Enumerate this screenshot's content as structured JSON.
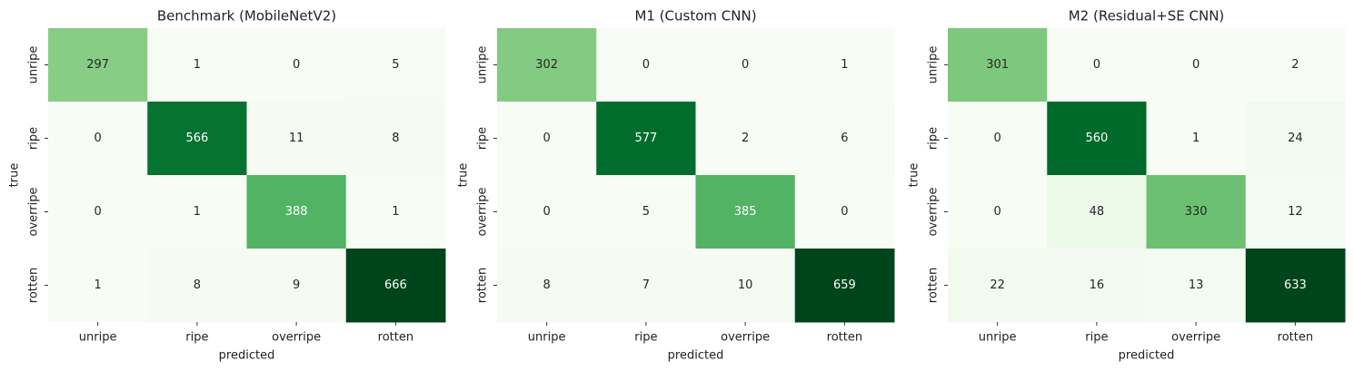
{
  "chart_data": [
    {
      "type": "heatmap",
      "title": "Benchmark (MobileNetV2)",
      "x_label": "predicted",
      "y_label": "true",
      "colormap": "Greens",
      "x_categories": [
        "unripe",
        "ripe",
        "overripe",
        "rotten"
      ],
      "y_categories": [
        "unripe",
        "ripe",
        "overripe",
        "rotten"
      ],
      "values": [
        [
          297,
          1,
          0,
          5
        ],
        [
          0,
          566,
          11,
          8
        ],
        [
          0,
          1,
          388,
          1
        ],
        [
          1,
          8,
          9,
          666
        ]
      ]
    },
    {
      "type": "heatmap",
      "title": "M1 (Custom CNN)",
      "x_label": "predicted",
      "y_label": "true",
      "colormap": "Greens",
      "x_categories": [
        "unripe",
        "ripe",
        "overripe",
        "rotten"
      ],
      "y_categories": [
        "unripe",
        "ripe",
        "overripe",
        "rotten"
      ],
      "values": [
        [
          302,
          0,
          0,
          1
        ],
        [
          0,
          577,
          2,
          6
        ],
        [
          0,
          5,
          385,
          0
        ],
        [
          8,
          7,
          10,
          659
        ]
      ]
    },
    {
      "type": "heatmap",
      "title": "M2 (Residual+SE CNN)",
      "x_label": "predicted",
      "y_label": "true",
      "colormap": "Greens",
      "x_categories": [
        "unripe",
        "ripe",
        "overripe",
        "rotten"
      ],
      "y_categories": [
        "unripe",
        "ripe",
        "overripe",
        "rotten"
      ],
      "values": [
        [
          301,
          0,
          0,
          2
        ],
        [
          0,
          560,
          1,
          24
        ],
        [
          0,
          48,
          330,
          12
        ],
        [
          22,
          16,
          13,
          633
        ]
      ]
    }
  ]
}
